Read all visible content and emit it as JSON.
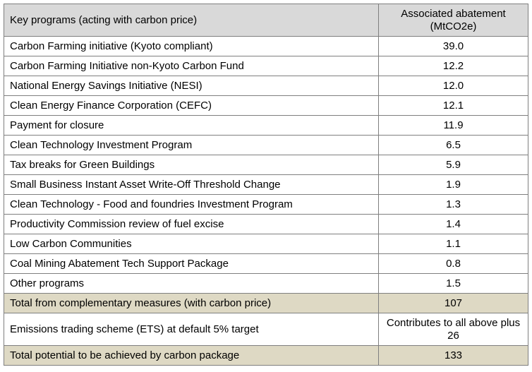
{
  "table": {
    "headers": {
      "program": "Key programs (acting with carbon price)",
      "abatement": "Associated abatement (MtCO2e)"
    },
    "rows": [
      {
        "program": "Carbon Farming initiative (Kyoto compliant)",
        "abatement": "39.0"
      },
      {
        "program": "Carbon Farming Initiative non-Kyoto Carbon Fund",
        "abatement": "12.2"
      },
      {
        "program": "National Energy Savings Initiative (NESI)",
        "abatement": "12.0"
      },
      {
        "program": "Clean Energy Finance Corporation (CEFC)",
        "abatement": "12.1"
      },
      {
        "program": "Payment for closure",
        "abatement": "11.9"
      },
      {
        "program": "Clean Technology Investment Program",
        "abatement": "6.5"
      },
      {
        "program": "Tax breaks for Green Buildings",
        "abatement": "5.9"
      },
      {
        "program": "Small Business Instant Asset Write-Off Threshold Change",
        "abatement": "1.9"
      },
      {
        "program": "Clean Technology - Food and foundries Investment Program",
        "abatement": "1.3"
      },
      {
        "program": "Productivity Commission review of fuel excise",
        "abatement": "1.4"
      },
      {
        "program": "Low Carbon Communities",
        "abatement": "1.1"
      },
      {
        "program": "Coal Mining Abatement Tech Support Package",
        "abatement": "0.8"
      },
      {
        "program": "Other programs",
        "abatement": "1.5"
      }
    ],
    "subtotal": {
      "program": "Total from complementary measures (with carbon price)",
      "abatement": "107"
    },
    "ets": {
      "program": "Emissions trading scheme (ETS) at default 5% target",
      "abatement": "Contributes to all above plus 26"
    },
    "total": {
      "program": "Total potential to be achieved by carbon package",
      "abatement": "133"
    }
  }
}
